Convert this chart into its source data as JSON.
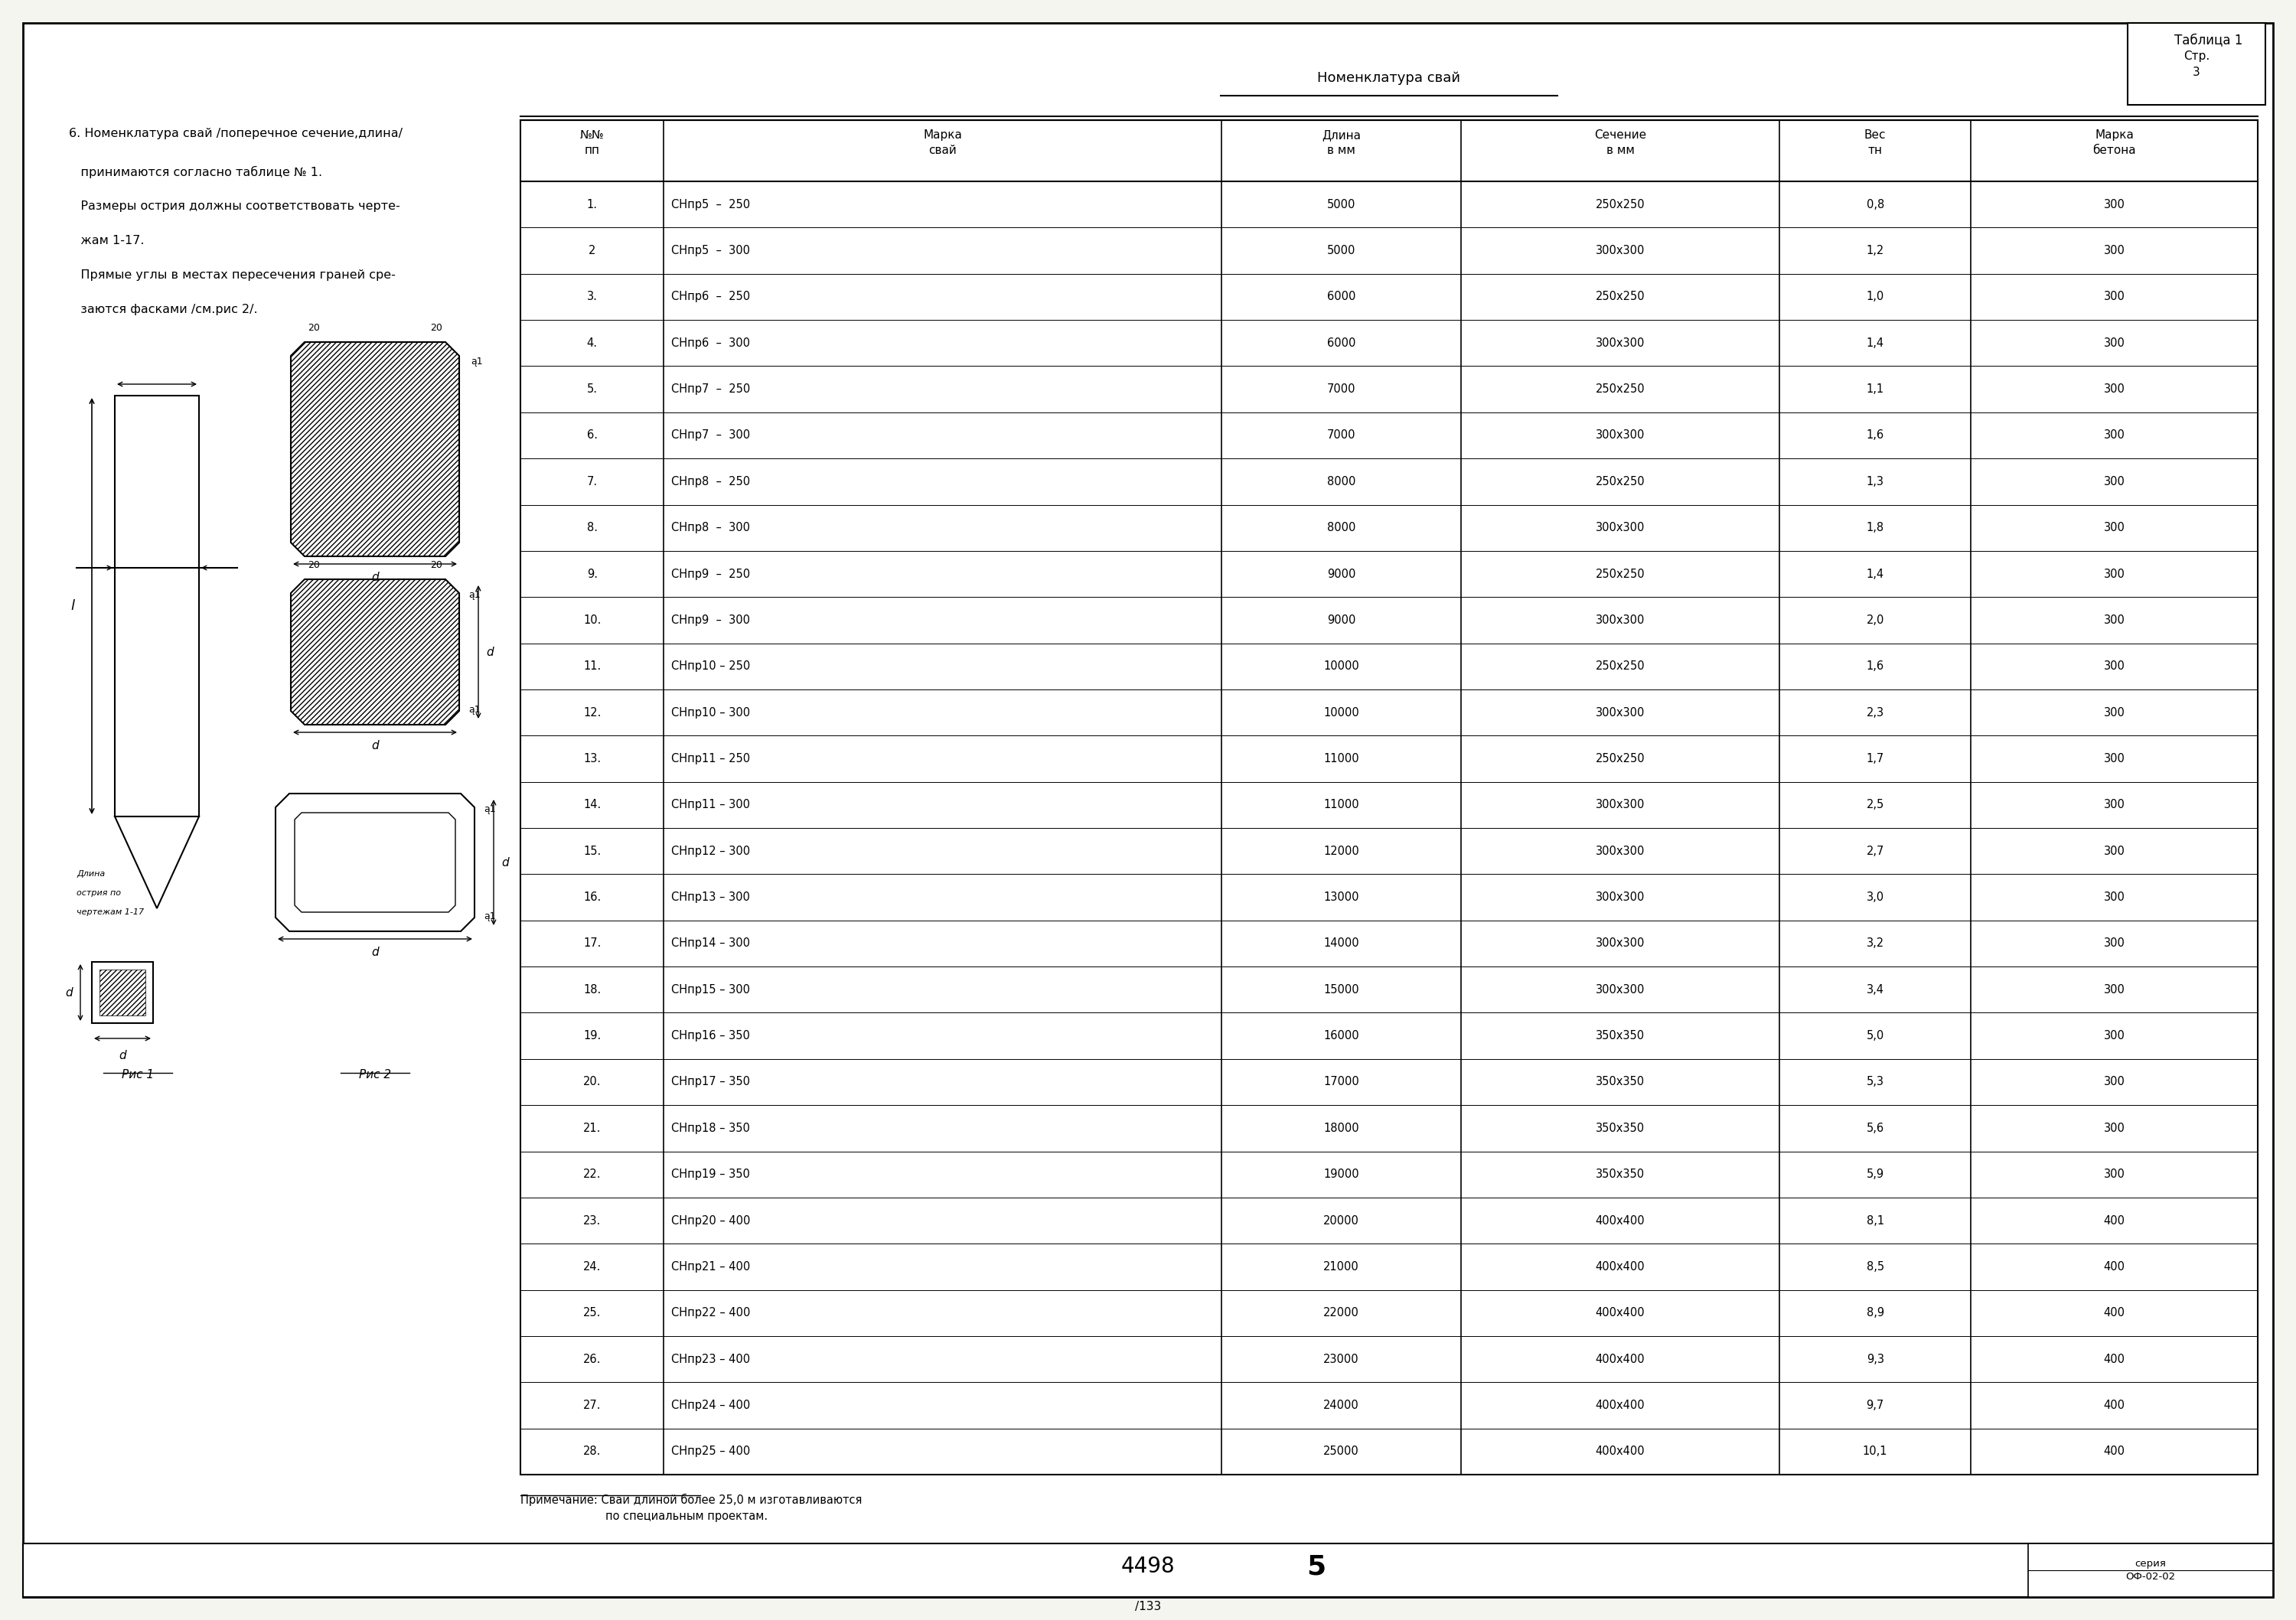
{
  "page_bg": "#f5f5f0",
  "border_color": "#000000",
  "text_color": "#000000",
  "page_number": "Стр.\n3",
  "title_text": "6. Номенклатура свай /поперечное сечение,длина/\n   принимаются согласно таблице № 1.\n   Размеры острия должны соответствовать черте-\n   жам 1-17.\n   Прямые углы в местах пересечения граней сре-\n   заются фасками /см.рис 2/.",
  "table_title": "Номенклатура свай",
  "tablitsa_label": "Таблица 1",
  "col_headers": [
    "№№\nпп",
    "Марка\nсвай",
    "Длина\nв мм",
    "Сечение\nв мм",
    "Вес\nтн",
    "Марка\nбетона"
  ],
  "table_data": [
    [
      "1.",
      "СНпр5  –  250",
      "5000",
      "250х250",
      "0,8",
      "300"
    ],
    [
      "2",
      "СНпр5  –  300",
      "5000",
      "300х300",
      "1,2",
      "300"
    ],
    [
      "3.",
      "СНпр6  –  250",
      "6000",
      "250х250",
      "1,0",
      "300"
    ],
    [
      "4.",
      "СНпр6  –  300",
      "6000",
      "300х300",
      "1,4",
      "300"
    ],
    [
      "5.",
      "СНпр7  –  250",
      "7000",
      "250х250",
      "1,1",
      "300"
    ],
    [
      "6.",
      "СНпр7  –  300",
      "7000",
      "300х300",
      "1,6",
      "300"
    ],
    [
      "7.",
      "СНпр8  –  250",
      "8000",
      "250х250",
      "1,3",
      "300"
    ],
    [
      "8.",
      "СНпр8  –  300",
      "8000",
      "300х300",
      "1,8",
      "300"
    ],
    [
      "9.",
      "СНпр9  –  250",
      "9000",
      "250х250",
      "1,4",
      "300"
    ],
    [
      "10.",
      "СНпр9  –  300",
      "9000",
      "300х300",
      "2,0",
      "300"
    ],
    [
      "11.",
      "СНпр10 – 250",
      "10000",
      "250х250",
      "1,6",
      "300"
    ],
    [
      "12.",
      "СНпр10 – 300",
      "10000",
      "300х300",
      "2,3",
      "300"
    ],
    [
      "13.",
      "СНпр11 – 250",
      "11000",
      "250х250",
      "1,7",
      "300"
    ],
    [
      "14.",
      "СНпр11 – 300",
      "11000",
      "300х300",
      "2,5",
      "300"
    ],
    [
      "15.",
      "СНпр12 – 300",
      "12000",
      "300х300",
      "2,7",
      "300"
    ],
    [
      "16.",
      "СНпр13 – 300",
      "13000",
      "300х300",
      "3,0",
      "300"
    ],
    [
      "17.",
      "СНпр14 – 300",
      "14000",
      "300х300",
      "3,2",
      "300"
    ],
    [
      "18.",
      "СНпр15 – 300",
      "15000",
      "300х300",
      "3,4",
      "300"
    ],
    [
      "19.",
      "СНпр16 – 350",
      "16000",
      "350х350",
      "5,0",
      "300"
    ],
    [
      "20.",
      "СНпр17 – 350",
      "17000",
      "350х350",
      "5,3",
      "300"
    ],
    [
      "21.",
      "СНпр18 – 350",
      "18000",
      "350х350",
      "5,6",
      "300"
    ],
    [
      "22.",
      "СНпр19 – 350",
      "19000",
      "350х350",
      "5,9",
      "300"
    ],
    [
      "23.",
      "СНпр20 – 400",
      "20000",
      "400х400",
      "8,1",
      "400"
    ],
    [
      "24.",
      "СНпр21 – 400",
      "21000",
      "400х400",
      "8,5",
      "400"
    ],
    [
      "25.",
      "СНпр22 – 400",
      "22000",
      "400х400",
      "8,9",
      "400"
    ],
    [
      "26.",
      "СНпр23 – 400",
      "23000",
      "400х400",
      "9,3",
      "400"
    ],
    [
      "27.",
      "СНпр24 – 400",
      "24000",
      "400х400",
      "9,7",
      "400"
    ],
    [
      "28.",
      "СНпр25 – 400",
      "25000",
      "400х400",
      "10,1",
      "400"
    ]
  ],
  "footnote": "Примечание: Сваи длиной более 25,0 м изготавливаются\n                        по специальным проектам.",
  "bottom_left_num": "4498",
  "bottom_right_num": "5",
  "series_label": "серия\nОФ-02-02",
  "page_bottom": "/133"
}
